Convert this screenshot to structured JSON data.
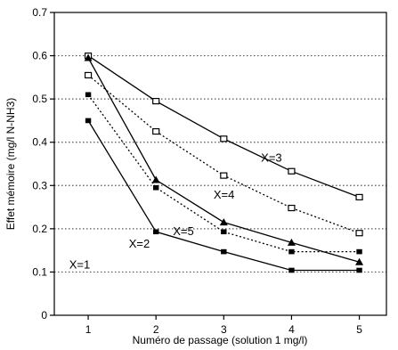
{
  "chart_data": {
    "type": "line",
    "xlabel": "Numéro de passage (solution 1 mg/l)",
    "ylabel": "Effet mémoire (mg/l N-NH3)",
    "x": [
      1,
      2,
      3,
      4,
      5
    ],
    "xlim": [
      0.5,
      5.4
    ],
    "ylim": [
      0,
      0.7
    ],
    "xticks": [
      "1",
      "2",
      "3",
      "4",
      "5"
    ],
    "yticks": [
      "0",
      "0.1",
      "0.2",
      "0.3",
      "0.4",
      "0.5",
      "0.6",
      "0.7"
    ],
    "grid": "horizontal-dotted",
    "series": [
      {
        "name": "X=3",
        "values": [
          0.6,
          0.495,
          0.408,
          0.333,
          0.273
        ],
        "marker": "square-open",
        "line": "solid"
      },
      {
        "name": "X=4",
        "values": [
          0.555,
          0.425,
          0.323,
          0.248,
          0.19
        ],
        "marker": "square-open",
        "line": "dotted"
      },
      {
        "name": "X=5",
        "values": [
          0.595,
          0.313,
          0.215,
          0.168,
          0.123
        ],
        "marker": "triangle",
        "line": "solid"
      },
      {
        "name": "X=2",
        "values": [
          0.51,
          0.295,
          0.193,
          0.147,
          0.147
        ],
        "marker": "square",
        "line": "dotted"
      },
      {
        "name": "X=1",
        "values": [
          0.45,
          0.193,
          0.147,
          0.104,
          0.104
        ],
        "marker": "square",
        "line": "solid"
      }
    ]
  }
}
